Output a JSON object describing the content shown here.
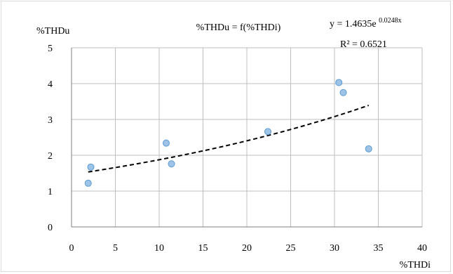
{
  "chart_data": {
    "type": "scatter",
    "title": "%THDu = f(%THDi)",
    "xlabel": "%THDi",
    "ylabel": "%THDu",
    "xlim": [
      0,
      40
    ],
    "ylim": [
      0,
      5
    ],
    "xticks": [
      0,
      5,
      10,
      15,
      20,
      25,
      30,
      35,
      40
    ],
    "yticks": [
      0,
      1,
      2,
      3,
      4,
      5
    ],
    "grid": true,
    "points": [
      {
        "x": 1.9,
        "y": 1.22
      },
      {
        "x": 2.2,
        "y": 1.67
      },
      {
        "x": 10.8,
        "y": 2.34
      },
      {
        "x": 11.4,
        "y": 1.76
      },
      {
        "x": 22.4,
        "y": 2.66
      },
      {
        "x": 30.5,
        "y": 4.03
      },
      {
        "x": 31.0,
        "y": 3.75
      },
      {
        "x": 33.9,
        "y": 2.18
      }
    ],
    "trendline": {
      "type": "exponential",
      "a": 1.4635,
      "b": 0.0248,
      "x_range": [
        1.9,
        33.9
      ],
      "equation_base": "y = 1.4635e",
      "equation_exponent": "0.0248x",
      "r_squared": "R² = 0.6521"
    },
    "marker_color": "#9dc3e6",
    "marker_edge_color": "#5b9bd5",
    "trend_color": "#000000"
  }
}
